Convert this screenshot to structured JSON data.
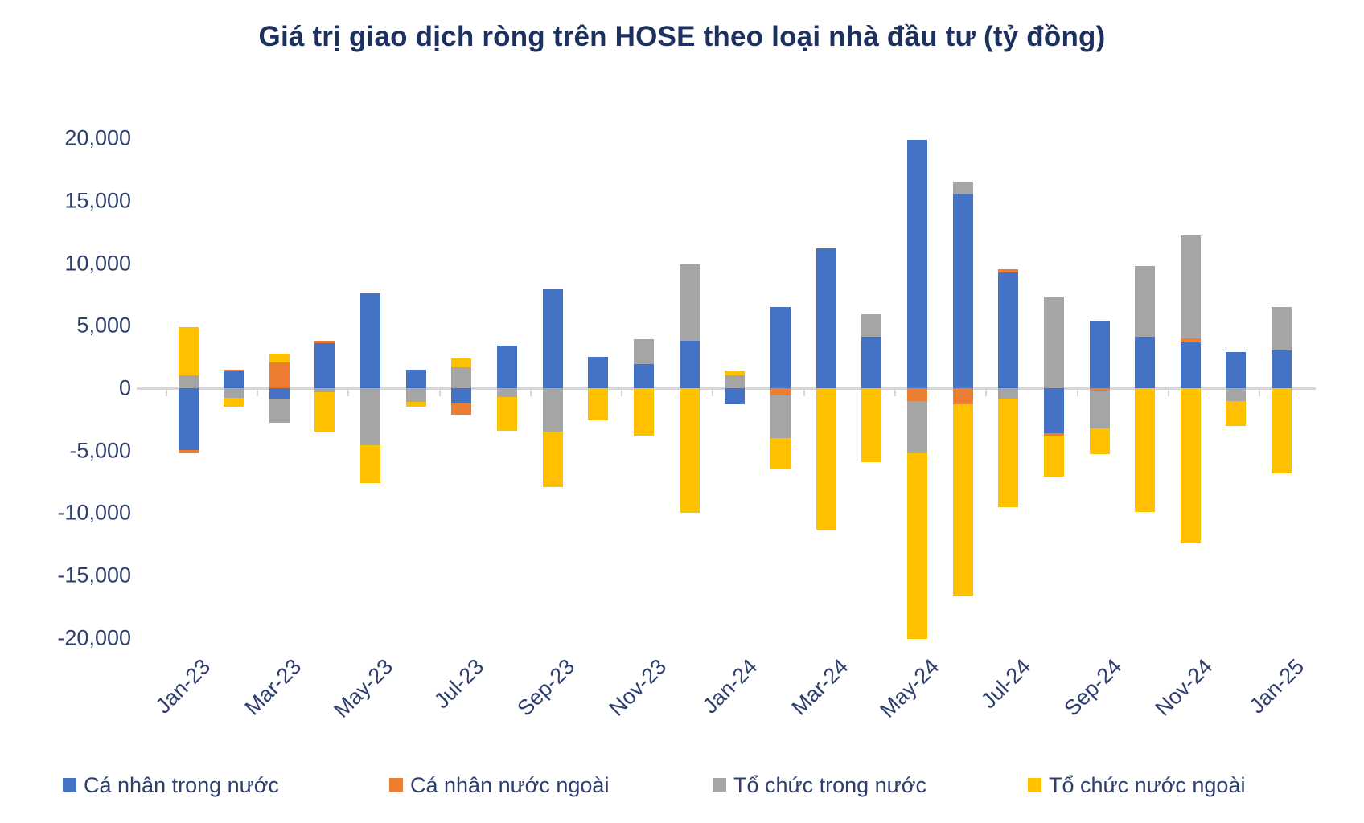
{
  "title": "Giá trị giao dịch ròng trên HOSE theo loại nhà đầu tư (tỷ đồng)",
  "colors": {
    "domestic_individual": "#4472C4",
    "foreign_individual": "#ED7D31",
    "domestic_institution": "#A5A5A5",
    "foreign_institution": "#FFC000",
    "axis_line": "#D6D6D6",
    "title_text": "#1D3160",
    "label_text": "#2E3F6E"
  },
  "chart_data": {
    "type": "bar",
    "stacked": true,
    "title": "Giá trị giao dịch ròng trên HOSE theo loại nhà đầu tư (tỷ đồng)",
    "ylabel": "tỷ đồng",
    "ylim": [
      -20000,
      20000
    ],
    "y_ticks": [
      20000,
      15000,
      10000,
      5000,
      0,
      -5000,
      -10000,
      -15000,
      -20000
    ],
    "y_tick_labels": [
      "20,000",
      "15,000",
      "10,000",
      "5,000",
      "0",
      "-5,000",
      "-10,000",
      "-15,000",
      "-20,000"
    ],
    "grid": false,
    "legend_position": "bottom",
    "categories": [
      "Jan-23",
      "Feb-23",
      "Mar-23",
      "Apr-23",
      "May-23",
      "Jun-23",
      "Jul-23",
      "Aug-23",
      "Sep-23",
      "Oct-23",
      "Nov-23",
      "Dec-23",
      "Jan-24",
      "Feb-24",
      "Mar-24",
      "Apr-24",
      "May-24",
      "Jun-24",
      "Jul-24",
      "Aug-24",
      "Sep-24",
      "Oct-24",
      "Nov-24",
      "Dec-24",
      "Jan-25"
    ],
    "x_tick_labels": [
      "Jan-23",
      "Mar-23",
      "May-23",
      "Jul-23",
      "Sep-23",
      "Nov-23",
      "Jan-24",
      "Mar-24",
      "May-24",
      "Jul-24",
      "Sep-24",
      "Nov-24",
      "Jan-25"
    ],
    "series": [
      {
        "name": "Cá nhân trong nước",
        "color": "#4472C4",
        "values": [
          -4950,
          1350,
          -850,
          3600,
          7600,
          1500,
          -1250,
          3400,
          7900,
          2500,
          1900,
          3800,
          -1300,
          6500,
          11200,
          4100,
          19900,
          15500,
          9250,
          -3600,
          5400,
          4100,
          3700,
          2900,
          3000
        ]
      },
      {
        "name": "Cá nhân nước ngoài",
        "color": "#ED7D31",
        "values": [
          -250,
          150,
          2050,
          200,
          0,
          0,
          -900,
          0,
          0,
          0,
          0,
          0,
          0,
          -600,
          0,
          0,
          -1000,
          -1300,
          300,
          -200,
          -200,
          0,
          300,
          0,
          0
        ]
      },
      {
        "name": "Tổ chức trong nước",
        "color": "#A5A5A5",
        "values": [
          1000,
          -750,
          -1900,
          -300,
          -4600,
          -1100,
          1700,
          -700,
          -3500,
          0,
          2000,
          6100,
          1050,
          -3400,
          0,
          1800,
          -4200,
          1000,
          -850,
          7300,
          -3000,
          5700,
          8200,
          -1000,
          3500
        ]
      },
      {
        "name": "Tổ chức nước ngoài",
        "color": "#FFC000",
        "values": [
          3900,
          -700,
          700,
          -3200,
          -3000,
          -400,
          700,
          -2700,
          -4400,
          -2600,
          -3800,
          -10000,
          350,
          -2500,
          -11300,
          -5900,
          -14900,
          -15300,
          -8700,
          -3300,
          -2100,
          -9900,
          -12400,
          -2000,
          -6800
        ]
      }
    ]
  },
  "legend": {
    "items": [
      {
        "label": "Cá nhân trong nước",
        "color": "#4472C4"
      },
      {
        "label": "Cá nhân nước ngoài",
        "color": "#ED7D31"
      },
      {
        "label": "Tổ chức trong nước",
        "color": "#A5A5A5"
      },
      {
        "label": "Tổ chức nước ngoài",
        "color": "#FFC000"
      }
    ]
  }
}
